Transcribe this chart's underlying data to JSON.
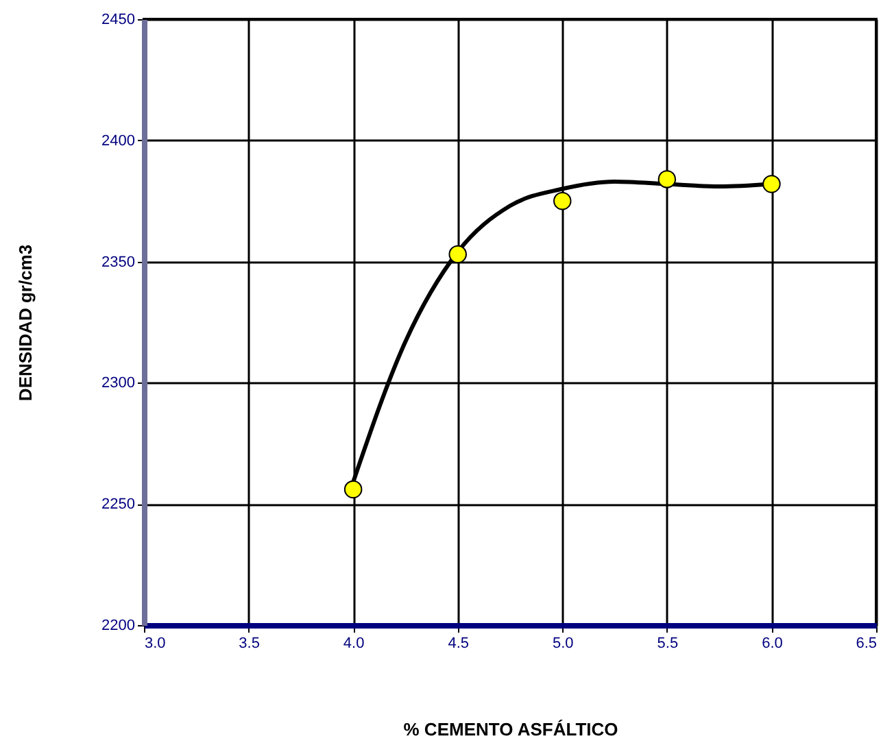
{
  "chart_data": {
    "type": "scatter",
    "xlabel": "% CEMENTO ASFÁLTICO",
    "ylabel": "DENSIDAD  gr/cm3",
    "x": [
      4.0,
      4.5,
      5.0,
      5.5,
      6.0
    ],
    "series": [
      {
        "color": "#ffff00",
        "marker": "circle",
        "values": [
          2256,
          2353,
          2375,
          2384,
          2382
        ]
      },
      {
        "type": "line",
        "color": "#000000",
        "marker": "none",
        "line_style": "solid",
        "x": [
          4.0,
          4.25,
          4.5,
          4.75,
          5.0,
          5.25,
          5.5,
          5.75,
          6.0
        ],
        "values": [
          2259,
          2317,
          2354,
          2373,
          2380,
          2383,
          2382,
          2381,
          2382
        ]
      }
    ],
    "xlim": [
      3.0,
      6.5
    ],
    "xticks": [
      {
        "value": 3,
        "label": "3.0"
      },
      3.5,
      {
        "value": 4,
        "label": "4.0"
      },
      4.5,
      {
        "value": 5,
        "label": "5.0"
      },
      5.5,
      {
        "value": 6,
        "label": "6.0"
      },
      6.5
    ],
    "ylim": [
      2200,
      2450
    ],
    "yticks": [
      2200,
      2250,
      2300,
      2350,
      2400,
      2450
    ],
    "grid": true
  }
}
